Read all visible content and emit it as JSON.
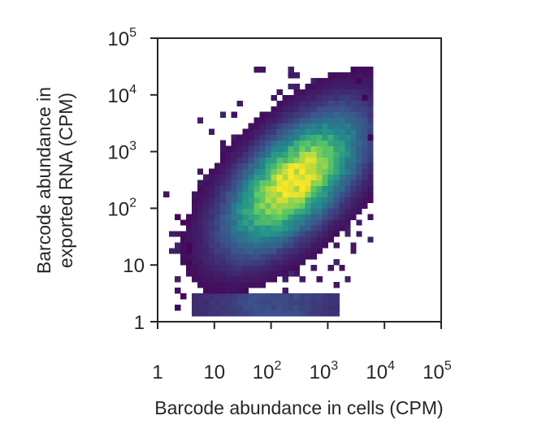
{
  "chart_data": {
    "type": "heatmap",
    "subtype": "2d-histogram",
    "xlabel": "Barcode abundance in cells (CPM)",
    "ylabel_lines": [
      "Barcode abundance in",
      "exported RNA (CPM)"
    ],
    "xscale": "log",
    "yscale": "log",
    "xlim": [
      1,
      100000
    ],
    "ylim": [
      1,
      100000
    ],
    "xticks": [
      {
        "value": 1,
        "base": "1",
        "exp": ""
      },
      {
        "value": 10,
        "base": "10",
        "exp": ""
      },
      {
        "value": 100,
        "base": "10",
        "exp": "2"
      },
      {
        "value": 1000,
        "base": "10",
        "exp": "3"
      },
      {
        "value": 10000,
        "base": "10",
        "exp": "4"
      },
      {
        "value": 100000,
        "base": "10",
        "exp": "5"
      }
    ],
    "yticks": [
      {
        "value": 1,
        "base": "1",
        "exp": ""
      },
      {
        "value": 10,
        "base": "10",
        "exp": ""
      },
      {
        "value": 100,
        "base": "10",
        "exp": "2"
      },
      {
        "value": 1000,
        "base": "10",
        "exp": "3"
      },
      {
        "value": 10000,
        "base": "10",
        "exp": "4"
      },
      {
        "value": 100000,
        "base": "10",
        "exp": "5"
      }
    ],
    "grid": false,
    "legend": "none",
    "colormap": "viridis",
    "colormap_stops": [
      "#440154",
      "#3b528b",
      "#21918c",
      "#5ec962",
      "#fde725"
    ],
    "bins_per_decade": 10,
    "distribution": {
      "peak_x": 250,
      "peak_y": 300,
      "x_range": [
        1.3,
        6000
      ],
      "y_range": [
        1.3,
        30000
      ],
      "low_y_floor_band": [
        1.3,
        3.5
      ],
      "outliers": [
        [
          2.5,
          70
        ],
        [
          2.8,
          55
        ],
        [
          3.6,
          25
        ],
        [
          3.2,
          18
        ],
        [
          3.8,
          12
        ],
        [
          2.6,
          3
        ],
        [
          2.5,
          1.9
        ],
        [
          3000,
          28000
        ],
        [
          3200,
          19000
        ],
        [
          5600,
          1800
        ],
        [
          4200,
          9000
        ]
      ]
    }
  }
}
